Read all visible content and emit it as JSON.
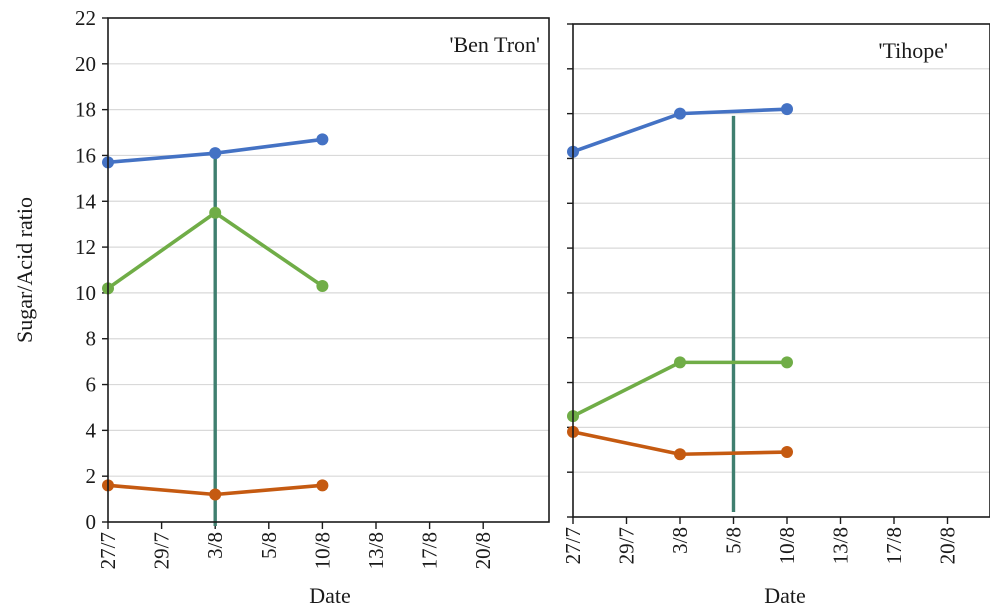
{
  "chart_data": [
    {
      "type": "line",
      "title": "'Ben Tron'",
      "ylabel": "Sugar/Acid ratio",
      "xlabel": "Date",
      "ylim": [
        0,
        22
      ],
      "y_ticks": [
        0,
        2,
        4,
        6,
        8,
        10,
        12,
        14,
        16,
        18,
        20,
        22
      ],
      "x_tick_labels": [
        "27/7",
        "29/7",
        "3/8",
        "5/8",
        "10/8",
        "13/8",
        "17/8",
        "20/8"
      ],
      "grid": "horizontal",
      "series": [
        {
          "color": "#4472c4",
          "x": [
            "27/7",
            "3/8",
            "10/8"
          ],
          "values": [
            15.7,
            16.1,
            16.7
          ]
        },
        {
          "color": "#70ad47",
          "x": [
            "27/7",
            "3/8",
            "10/8"
          ],
          "values": [
            10.2,
            13.5,
            10.3
          ]
        },
        {
          "color": "#c55a11",
          "x": [
            "27/7",
            "3/8",
            "10/8"
          ],
          "values": [
            1.6,
            1.2,
            1.6
          ]
        }
      ],
      "marker_line": {
        "x": "3/8",
        "color": "#3f7f6f"
      }
    },
    {
      "type": "line",
      "title": "'Tihope'",
      "xlabel": "Date",
      "ylim": [
        0,
        22
      ],
      "x_tick_labels": [
        "27/7",
        "29/7",
        "3/8",
        "5/8",
        "10/8",
        "13/8",
        "17/8",
        "20/8"
      ],
      "grid": "horizontal",
      "series": [
        {
          "color": "#4472c4",
          "x": [
            "27/7",
            "3/8",
            "10/8"
          ],
          "values": [
            16.3,
            18.0,
            18.2
          ]
        },
        {
          "color": "#70ad47",
          "x": [
            "27/7",
            "3/8",
            "10/8"
          ],
          "values": [
            4.5,
            6.9,
            6.9
          ]
        },
        {
          "color": "#c55a11",
          "x": [
            "27/7",
            "3/8",
            "10/8"
          ],
          "values": [
            3.8,
            2.8,
            2.9
          ]
        }
      ],
      "marker_line": {
        "x": "5/8",
        "color": "#3f7f6f"
      }
    }
  ]
}
